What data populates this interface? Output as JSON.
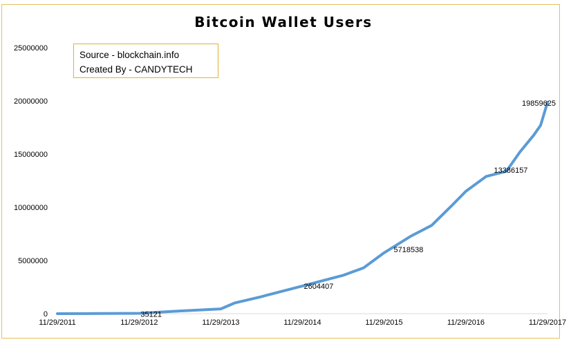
{
  "chart_data": {
    "type": "line",
    "title": "Bitcoin Wallet Users",
    "annotation": [
      "Source - blockchain.info",
      "Created By - CANDYTECH"
    ],
    "xlabel": "",
    "ylabel": "",
    "yticks": [
      0,
      5000000,
      10000000,
      15000000,
      20000000,
      25000000
    ],
    "ytick_labels": [
      "0",
      "5000000",
      "10000000",
      "15000000",
      "20000000",
      "25000000"
    ],
    "ylim": [
      0,
      25000000
    ],
    "xtick_labels": [
      "11/29/2011",
      "11/29/2012",
      "11/29/2013",
      "11/29/2014",
      "11/29/2015",
      "11/29/2016",
      "11/29/2017"
    ],
    "xlim": [
      "11/29/2011",
      "11/29/2017"
    ],
    "grid": false,
    "legend": "none",
    "line_color": "#5b9bd5",
    "series": [
      {
        "x": [
          "11/29/2011",
          "05/29/2012",
          "11/29/2012",
          "05/29/2013",
          "11/29/2013",
          "01/29/2014",
          "05/29/2014",
          "11/29/2014",
          "05/29/2015",
          "08/29/2015",
          "11/29/2015",
          "03/29/2016",
          "06/29/2016",
          "09/29/2016",
          "11/29/2016",
          "02/28/2017",
          "05/29/2017",
          "07/29/2017",
          "09/29/2017",
          "10/29/2017",
          "11/29/2017"
        ],
        "values": [
          0,
          10000,
          35121,
          250000,
          450000,
          1000000,
          1600000,
          2604407,
          3600000,
          4300000,
          5718538,
          7300000,
          8300000,
          10200000,
          11500000,
          12900000,
          13386157,
          15200000,
          16800000,
          17700000,
          19859625
        ]
      }
    ],
    "data_labels": [
      {
        "x": "11/29/2012",
        "value": 35121,
        "text": "35121"
      },
      {
        "x": "11/29/2014",
        "value": 2604407,
        "text": "2604407"
      },
      {
        "x": "11/29/2015",
        "value": 5718538,
        "text": "5718538"
      },
      {
        "x": "05/29/2017",
        "value": 13386157,
        "text": "13386157"
      },
      {
        "x": "11/29/2017",
        "value": 19859625,
        "text": "19859625"
      }
    ]
  }
}
